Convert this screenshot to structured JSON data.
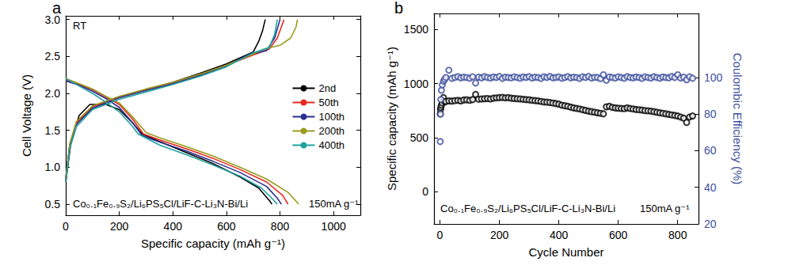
{
  "chart_data": [
    {
      "type": "line",
      "title": "a",
      "annotations": [
        "RT",
        "Co₀.₁Fe₀.₉S₂/Li₆PS₅Cl/LiF-C-Li₃N-Bi/Li",
        "150mA g⁻¹"
      ],
      "xlabel": "Specific capacity (mAh g⁻¹)",
      "ylabel": "Cell Voltage (V)",
      "xlim": [
        0,
        1100
      ],
      "xticks": [
        0,
        200,
        400,
        600,
        800,
        1000
      ],
      "ylim": [
        0.35,
        3.05
      ],
      "yticks": [
        0.5,
        {
          "value": 1,
          "label": "1.0"
        },
        1.5,
        {
          "value": 2,
          "label": "2.0"
        },
        2.5,
        {
          "value": 3,
          "label": "3.0"
        }
      ],
      "grid": false,
      "legend": "right",
      "line_style": "solid",
      "series": [
        {
          "name": "2nd",
          "color": "#000000",
          "x": [
            0,
            20,
            50,
            90,
            150,
            200,
            250,
            285,
            350,
            450,
            550,
            650,
            720,
            760,
            770,
            null,
            0,
            15,
            40,
            100,
            200,
            300,
            400,
            500,
            600,
            650,
            700,
            720,
            735,
            745
          ],
          "values": [
            0.8,
            1.35,
            1.7,
            1.85,
            1.85,
            1.78,
            1.6,
            1.45,
            1.35,
            1.2,
            1.05,
            0.87,
            0.72,
            0.55,
            0.5,
            null,
            0.85,
            1.3,
            1.6,
            1.82,
            1.95,
            2.05,
            2.15,
            2.27,
            2.4,
            2.48,
            2.56,
            2.7,
            2.85,
            3.0
          ]
        },
        {
          "name": "50th",
          "color": "#e8281e",
          "x": [
            0,
            50,
            100,
            150,
            200,
            250,
            290,
            350,
            450,
            550,
            650,
            750,
            810,
            830,
            null,
            0,
            15,
            40,
            100,
            200,
            300,
            400,
            500,
            600,
            650,
            700,
            760,
            790,
            805,
            815
          ],
          "values": [
            2.18,
            2.12,
            2.05,
            1.95,
            1.85,
            1.65,
            1.45,
            1.37,
            1.25,
            1.12,
            0.97,
            0.8,
            0.62,
            0.5,
            null,
            0.82,
            1.3,
            1.6,
            1.82,
            1.95,
            2.05,
            2.14,
            2.25,
            2.38,
            2.45,
            2.52,
            2.6,
            2.75,
            2.9,
            3.0
          ]
        },
        {
          "name": "100th",
          "color": "#2b2f8f",
          "x": [
            0,
            50,
            100,
            150,
            200,
            250,
            285,
            350,
            450,
            550,
            650,
            750,
            790,
            805,
            null,
            0,
            15,
            40,
            100,
            200,
            300,
            400,
            500,
            600,
            680,
            750,
            780,
            800
          ],
          "values": [
            2.17,
            2.11,
            2.03,
            1.93,
            1.81,
            1.6,
            1.43,
            1.34,
            1.22,
            1.08,
            0.93,
            0.74,
            0.58,
            0.5,
            null,
            0.8,
            1.28,
            1.58,
            1.8,
            1.94,
            2.04,
            2.13,
            2.24,
            2.37,
            2.52,
            2.58,
            2.75,
            3.0
          ]
        },
        {
          "name": "200th",
          "color": "#9a9a1e",
          "x": [
            0,
            50,
            100,
            150,
            200,
            250,
            300,
            350,
            450,
            550,
            650,
            750,
            830,
            870,
            null,
            0,
            15,
            40,
            100,
            200,
            300,
            400,
            500,
            600,
            680,
            740,
            800,
            840,
            860,
            865
          ],
          "values": [
            2.2,
            2.13,
            2.06,
            1.96,
            1.87,
            1.68,
            1.47,
            1.4,
            1.28,
            1.15,
            1.0,
            0.84,
            0.66,
            0.5,
            null,
            0.83,
            1.32,
            1.62,
            1.83,
            1.96,
            2.06,
            2.15,
            2.26,
            2.38,
            2.5,
            2.6,
            2.65,
            2.75,
            2.9,
            3.0
          ]
        },
        {
          "name": "400th",
          "color": "#21a0a0",
          "x": [
            0,
            50,
            100,
            150,
            200,
            250,
            270,
            350,
            450,
            550,
            650,
            730,
            770,
            790,
            null,
            0,
            15,
            40,
            100,
            200,
            300,
            400,
            500,
            600,
            700,
            760,
            780,
            790
          ],
          "values": [
            2.2,
            2.1,
            2.0,
            1.88,
            1.75,
            1.55,
            1.45,
            1.3,
            1.17,
            1.03,
            0.88,
            0.72,
            0.58,
            0.5,
            null,
            0.8,
            1.25,
            1.55,
            1.78,
            1.92,
            2.02,
            2.12,
            2.23,
            2.36,
            2.55,
            2.62,
            2.8,
            3.0
          ]
        }
      ]
    },
    {
      "type": "scatter",
      "title": "b",
      "annotations": [
        "Co₀.₁Fe₀.₉S₂/Li₆PS₅Cl/LiF-C-Li₃N-Bi/Li",
        "150mA g⁻¹"
      ],
      "xlabel": "Cycle Number",
      "ylabel": "Specific capacity (mAh g⁻¹)",
      "y2label": "Coulombic Efficiency (%)",
      "xlim": [
        -20,
        870
      ],
      "xticks": [
        0,
        200,
        400,
        600,
        800
      ],
      "ylim": [
        -300,
        1650
      ],
      "yticks": [
        0,
        500,
        1000,
        1500
      ],
      "y2lim": [
        20,
        135
      ],
      "y2ticks": [
        20,
        40,
        60,
        80,
        100
      ],
      "grid": false,
      "marker": "open_circle",
      "x": [
        1,
        2,
        3,
        5,
        8,
        12,
        16,
        20,
        30,
        40,
        50,
        60,
        70,
        80,
        90,
        100,
        110,
        120,
        130,
        140,
        150,
        160,
        170,
        180,
        190,
        200,
        210,
        220,
        230,
        240,
        250,
        260,
        270,
        280,
        290,
        300,
        310,
        320,
        330,
        340,
        350,
        360,
        370,
        380,
        390,
        400,
        410,
        420,
        430,
        440,
        450,
        460,
        470,
        480,
        490,
        500,
        510,
        520,
        530,
        540,
        550,
        560,
        570,
        580,
        590,
        600,
        610,
        620,
        630,
        640,
        650,
        660,
        670,
        680,
        690,
        700,
        710,
        720,
        730,
        740,
        750,
        760,
        770,
        780,
        790,
        800,
        810,
        820,
        830,
        840,
        850
      ],
      "series": [
        {
          "color": "#000000",
          "values": [
            720,
            760,
            780,
            800,
            820,
            870,
            830,
            835,
            840,
            838,
            842,
            845,
            840,
            848,
            850,
            845,
            852,
            900,
            855,
            858,
            860,
            862,
            858,
            865,
            868,
            870,
            872,
            868,
            870,
            865,
            862,
            860,
            858,
            855,
            852,
            850,
            845,
            843,
            840,
            835,
            830,
            828,
            825,
            820,
            815,
            810,
            800,
            795,
            790,
            782,
            775,
            770,
            765,
            758,
            752,
            745,
            740,
            735,
            730,
            725,
            720,
            785,
            790,
            780,
            775,
            772,
            770,
            768,
            775,
            770,
            765,
            760,
            758,
            755,
            750,
            748,
            745,
            740,
            735,
            730,
            725,
            720,
            715,
            710,
            705,
            700,
            690,
            680,
            640,
            690,
            700
          ]
        },
        {
          "color": "#3d4f9c",
          "axis": "y2",
          "values": [
            65,
            80,
            88,
            93,
            96,
            98,
            99,
            100,
            104,
            99.5,
            100,
            100.5,
            99.8,
            100.2,
            100,
            99.6,
            100.4,
            97,
            100.2,
            99.8,
            100.5,
            100,
            99.7,
            100.3,
            100,
            100.6,
            99.5,
            100.2,
            100,
            99.8,
            100.4,
            100,
            99.6,
            100.3,
            100,
            100.5,
            99.7,
            100.2,
            100,
            99.5,
            100.4,
            100,
            100.6,
            99.8,
            100,
            100.3,
            99.6,
            100,
            100.5,
            99.8,
            100.2,
            100,
            99.5,
            100.4,
            100,
            100.6,
            99.7,
            100.1,
            100,
            99.4,
            101.5,
            98.5,
            100.3,
            100,
            99.7,
            100.4,
            100,
            99.6,
            100.5,
            100,
            99.8,
            100.3,
            100,
            99.5,
            100.4,
            100,
            99.7,
            100.5,
            100,
            99.6,
            100.3,
            100,
            99.8,
            100.6,
            100,
            101.5,
            99.7,
            100.2,
            98.8,
            100.4,
            99.6
          ]
        }
      ]
    }
  ]
}
